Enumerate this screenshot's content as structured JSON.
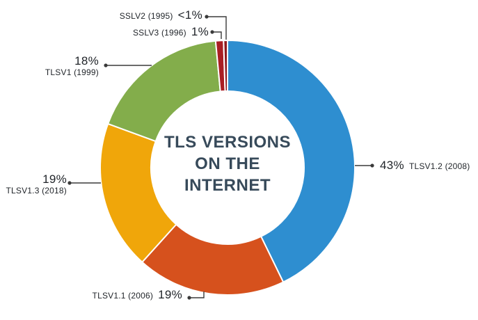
{
  "title": {
    "lines": [
      "TLS VERSIONS",
      "ON THE",
      "INTERNET"
    ]
  },
  "chart_data": {
    "type": "pie",
    "subtype": "donut",
    "title": "TLS VERSIONS ON THE INTERNET",
    "direction": "clockwise",
    "start_angle_deg": 0,
    "inner_radius_ratio": 0.6,
    "segments": [
      {
        "label": "TLSV1.2 (2008)",
        "value": 43,
        "display": "43%",
        "color": "#2e8ed0"
      },
      {
        "label": "TLSV1.1 (2006)",
        "value": 19,
        "display": "19%",
        "color": "#d6511d"
      },
      {
        "label": "TLSV1.3 (2018)",
        "value": 19,
        "display": "19%",
        "color": "#f0a60a"
      },
      {
        "label": "TLSV1 (1999)",
        "value": 18,
        "display": "18%",
        "color": "#83ad4b"
      },
      {
        "label": "SSLV3 (1996)",
        "value": 1,
        "display": "1%",
        "color": "#a91e23"
      },
      {
        "label": "SSLV2 (1995)",
        "value": 0.5,
        "display": "<1%",
        "color": "#8f1b1f"
      }
    ]
  },
  "colors": {
    "background": "#ffffff",
    "title_text": "#374a5a",
    "label_text": "#1f2328",
    "leader_line": "#3a3a3a",
    "segment_gap": "#ffffff"
  }
}
